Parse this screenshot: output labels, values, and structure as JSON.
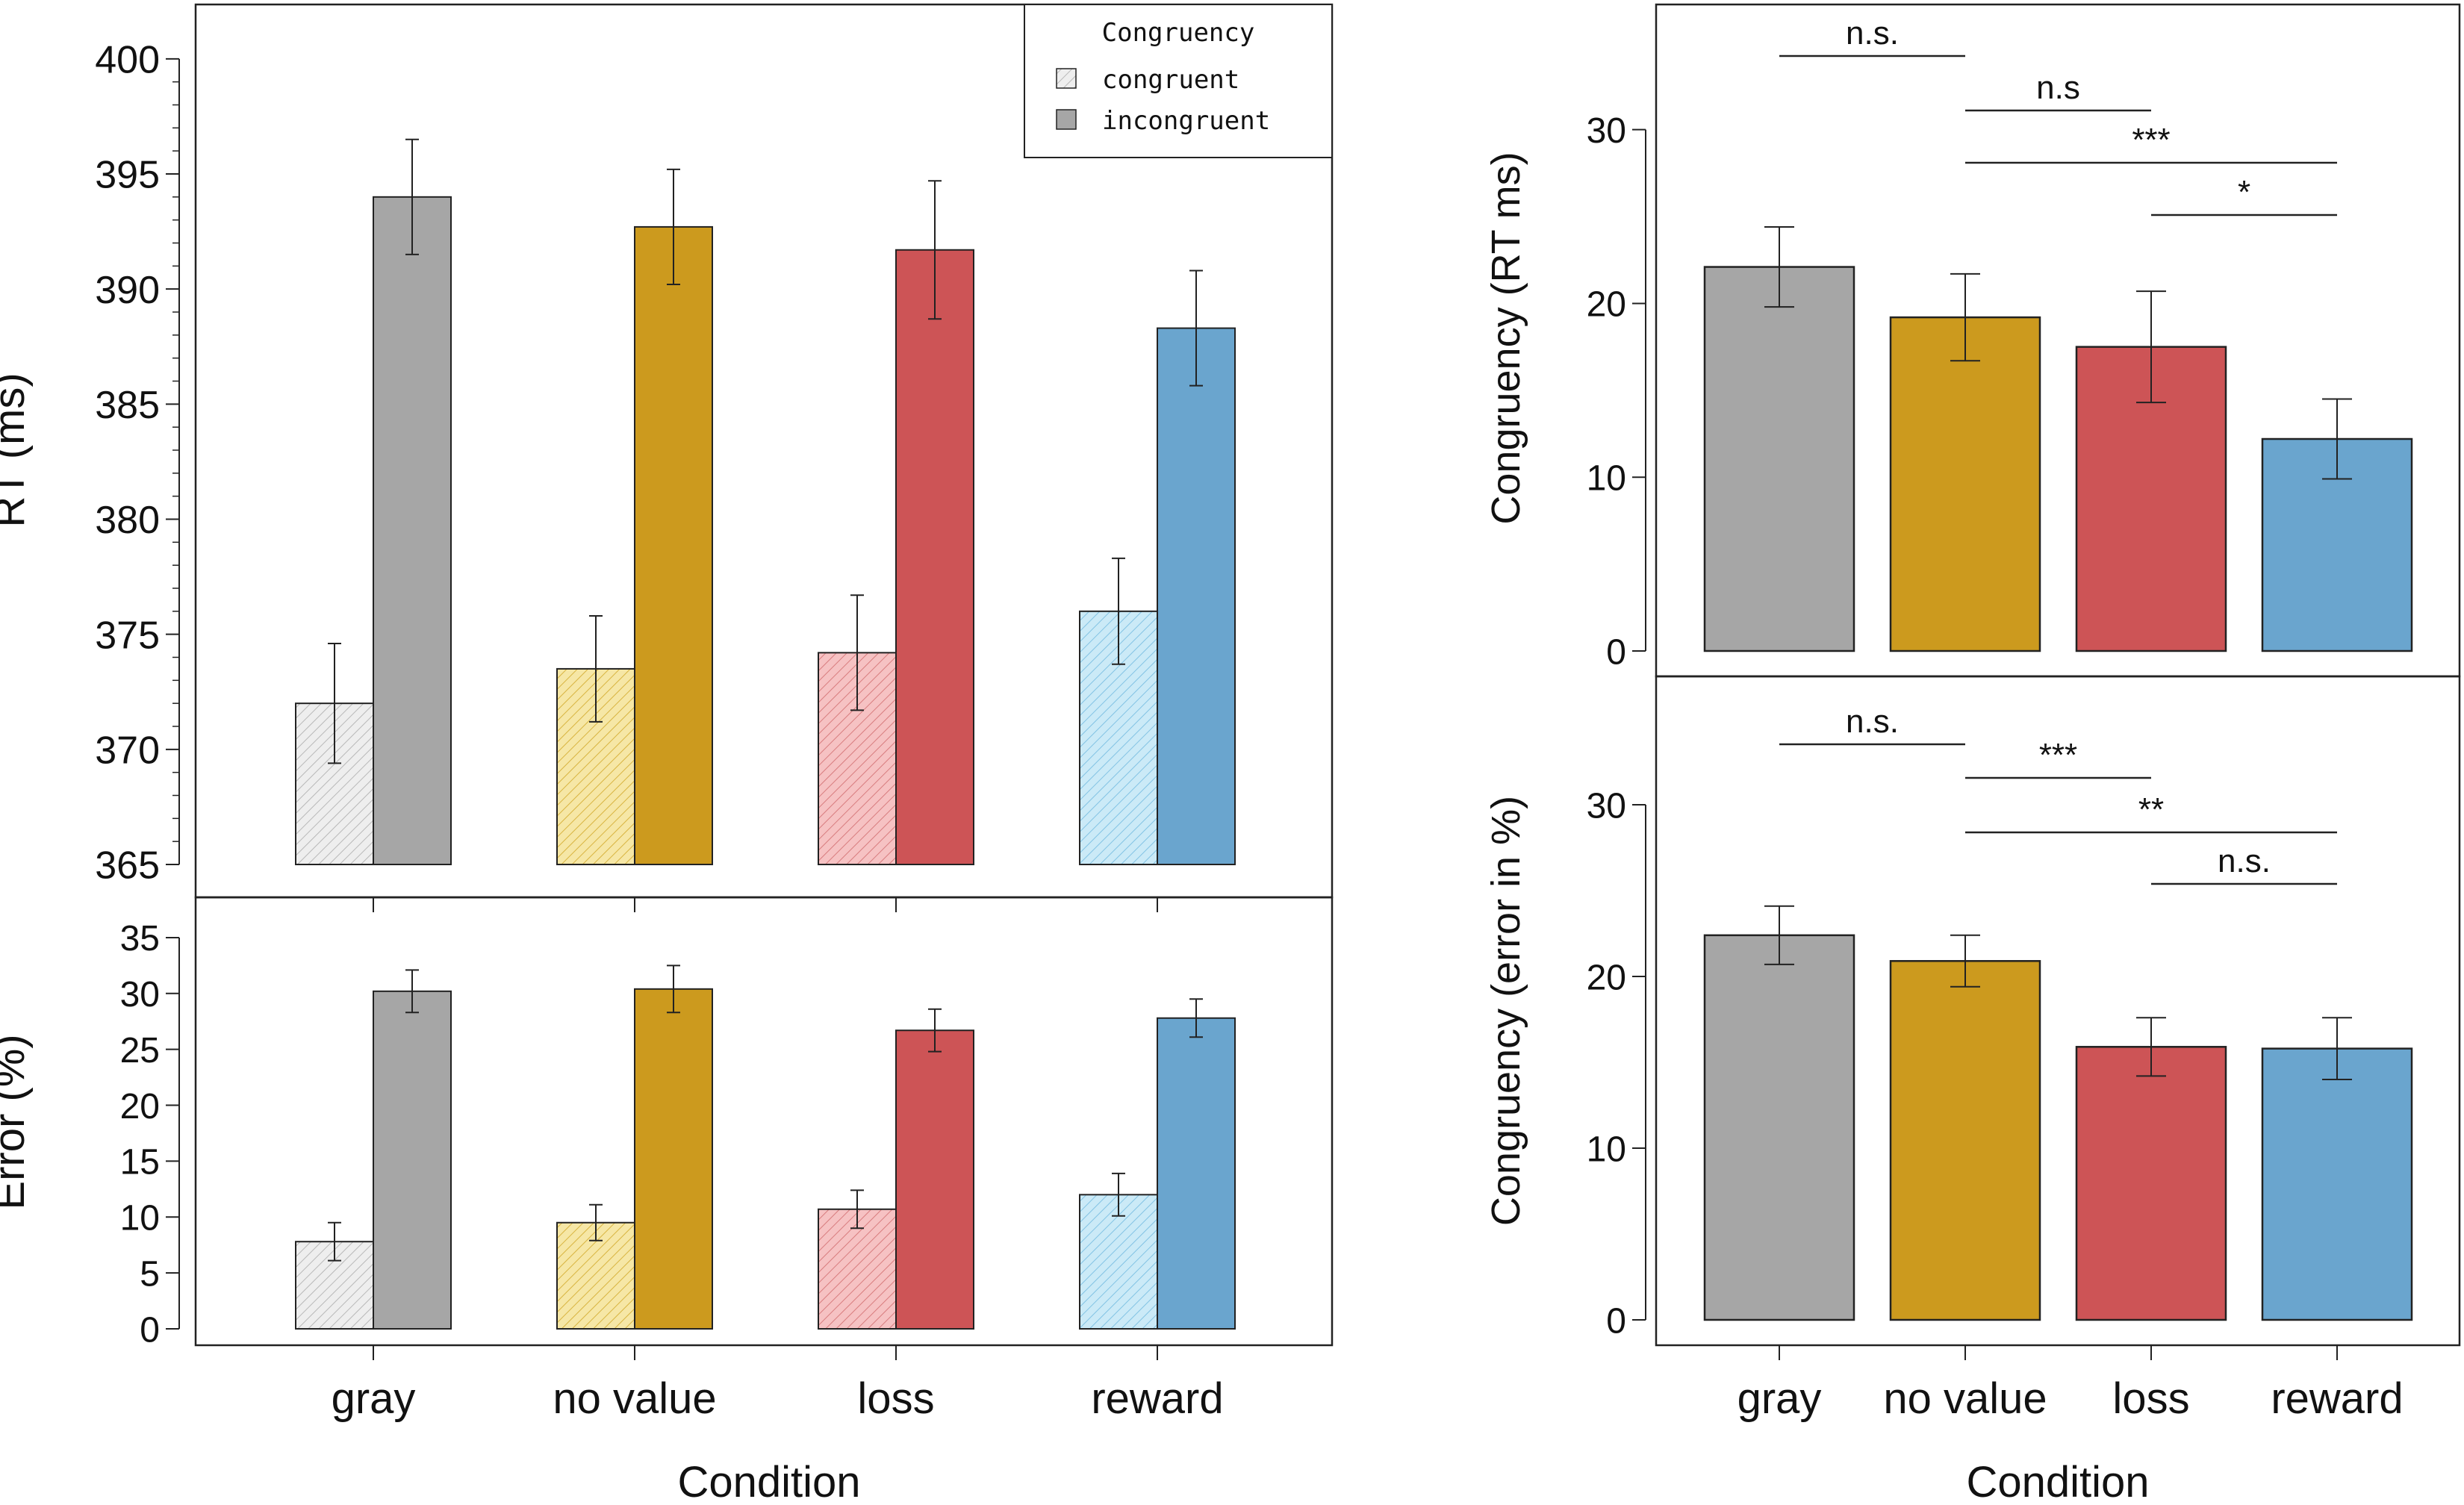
{
  "colors": {
    "gray": "#a6a6a6",
    "novalue": "#cc9a1e",
    "loss": "#cd5456",
    "reward": "#6aa5ce",
    "gray_light": "#eeeeee",
    "novalue_light": "#f6e7a6",
    "loss_light": "#f6c2c3",
    "reward_light": "#cbeaf7",
    "gray_hatch": "#b8b8b8",
    "novalue_hatch": "#d8b440",
    "loss_hatch": "#d87c7e",
    "reward_hatch": "#82c3e4"
  },
  "chart_data": [
    {
      "id": "rt",
      "type": "bar",
      "ylabel": "RT (ms)",
      "xlabel": "",
      "categories": [
        "gray",
        "no value",
        "loss",
        "reward"
      ],
      "ylim": [
        365,
        401
      ],
      "yticks": [
        365,
        370,
        375,
        380,
        385,
        390,
        395,
        400
      ],
      "minor_step": 1,
      "legend": {
        "title": "Congruency",
        "position": "top-right",
        "entries": [
          "congruent",
          "incongruent"
        ]
      },
      "series": [
        {
          "name": "congruent",
          "values": [
            372.0,
            373.5,
            374.2,
            376.0
          ],
          "err": [
            2.6,
            2.3,
            2.5,
            2.3
          ]
        },
        {
          "name": "incongruent",
          "values": [
            394.0,
            392.7,
            391.7,
            388.3
          ],
          "err": [
            2.5,
            2.5,
            3.0,
            2.5
          ]
        }
      ]
    },
    {
      "id": "err",
      "type": "bar",
      "ylabel": "Error (%)",
      "xlabel": "Condition",
      "categories": [
        "gray",
        "no value",
        "loss",
        "reward"
      ],
      "ylim": [
        0,
        37
      ],
      "yticks": [
        0,
        5,
        10,
        15,
        20,
        25,
        30,
        35
      ],
      "series": [
        {
          "name": "congruent",
          "values": [
            7.8,
            9.5,
            10.7,
            12.0
          ],
          "err": [
            1.7,
            1.6,
            1.7,
            1.9
          ]
        },
        {
          "name": "incongruent",
          "values": [
            30.2,
            30.4,
            26.7,
            27.8
          ],
          "err": [
            1.9,
            2.1,
            1.9,
            1.7
          ]
        }
      ]
    },
    {
      "id": "crt",
      "type": "bar",
      "ylabel": "Congruency (RT ms)",
      "xlabel": "",
      "categories": [
        "gray",
        "no value",
        "loss",
        "reward"
      ],
      "ylim": [
        0,
        36
      ],
      "yticks": [
        0,
        10,
        20,
        30
      ],
      "values": [
        22.1,
        19.2,
        17.5,
        12.2
      ],
      "err": [
        2.3,
        2.5,
        3.2,
        2.3
      ],
      "annotations": [
        {
          "from": 0,
          "to": 1,
          "label": "n.s."
        },
        {
          "from": 1,
          "to": 2,
          "label": "n.s"
        },
        {
          "from": 1,
          "to": 3,
          "label": "***"
        },
        {
          "from": 2,
          "to": 3,
          "label": "*"
        }
      ]
    },
    {
      "id": "cerr",
      "type": "bar",
      "ylabel": "Congruency (error in %)",
      "xlabel": "Condition",
      "categories": [
        "gray",
        "no value",
        "loss",
        "reward"
      ],
      "ylim": [
        0,
        36
      ],
      "yticks": [
        0,
        10,
        20,
        30
      ],
      "values": [
        22.4,
        20.9,
        15.9,
        15.8
      ],
      "err": [
        1.7,
        1.5,
        1.7,
        1.8
      ],
      "annotations": [
        {
          "from": 0,
          "to": 1,
          "label": "n.s."
        },
        {
          "from": 1,
          "to": 2,
          "label": "***"
        },
        {
          "from": 1,
          "to": 3,
          "label": "**"
        },
        {
          "from": 2,
          "to": 3,
          "label": "n.s."
        }
      ]
    }
  ]
}
